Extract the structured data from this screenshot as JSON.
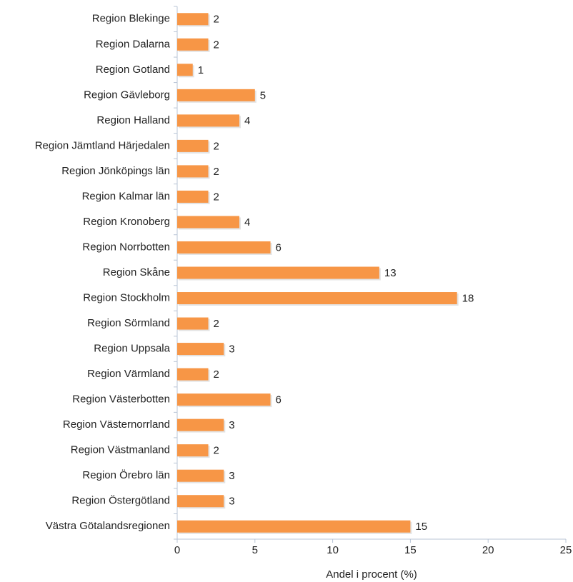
{
  "chart_data": {
    "type": "bar",
    "orientation": "horizontal",
    "x_label": "Andel i procent (%)",
    "categories": [
      "Region Blekinge",
      "Region Dalarna",
      "Region Gotland",
      "Region Gävleborg",
      "Region Halland",
      "Region Jämtland Härjedalen",
      "Region Jönköpings län",
      "Region Kalmar län",
      "Region Kronoberg",
      "Region Norrbotten",
      "Region Skåne",
      "Region Stockholm",
      "Region Sörmland",
      "Region Uppsala",
      "Region Värmland",
      "Region Västerbotten",
      "Region Västernorrland",
      "Region Västmanland",
      "Region Örebro län",
      "Region Östergötland",
      "Västra Götalandsregionen"
    ],
    "values": [
      2,
      2,
      1,
      5,
      4,
      2,
      2,
      2,
      4,
      6,
      13,
      18,
      2,
      3,
      2,
      6,
      3,
      2,
      3,
      3,
      15
    ],
    "color": "#f79646",
    "xlim": [
      0,
      25
    ],
    "xticks": [
      0,
      5,
      10,
      15,
      20,
      25
    ],
    "grid": false
  }
}
